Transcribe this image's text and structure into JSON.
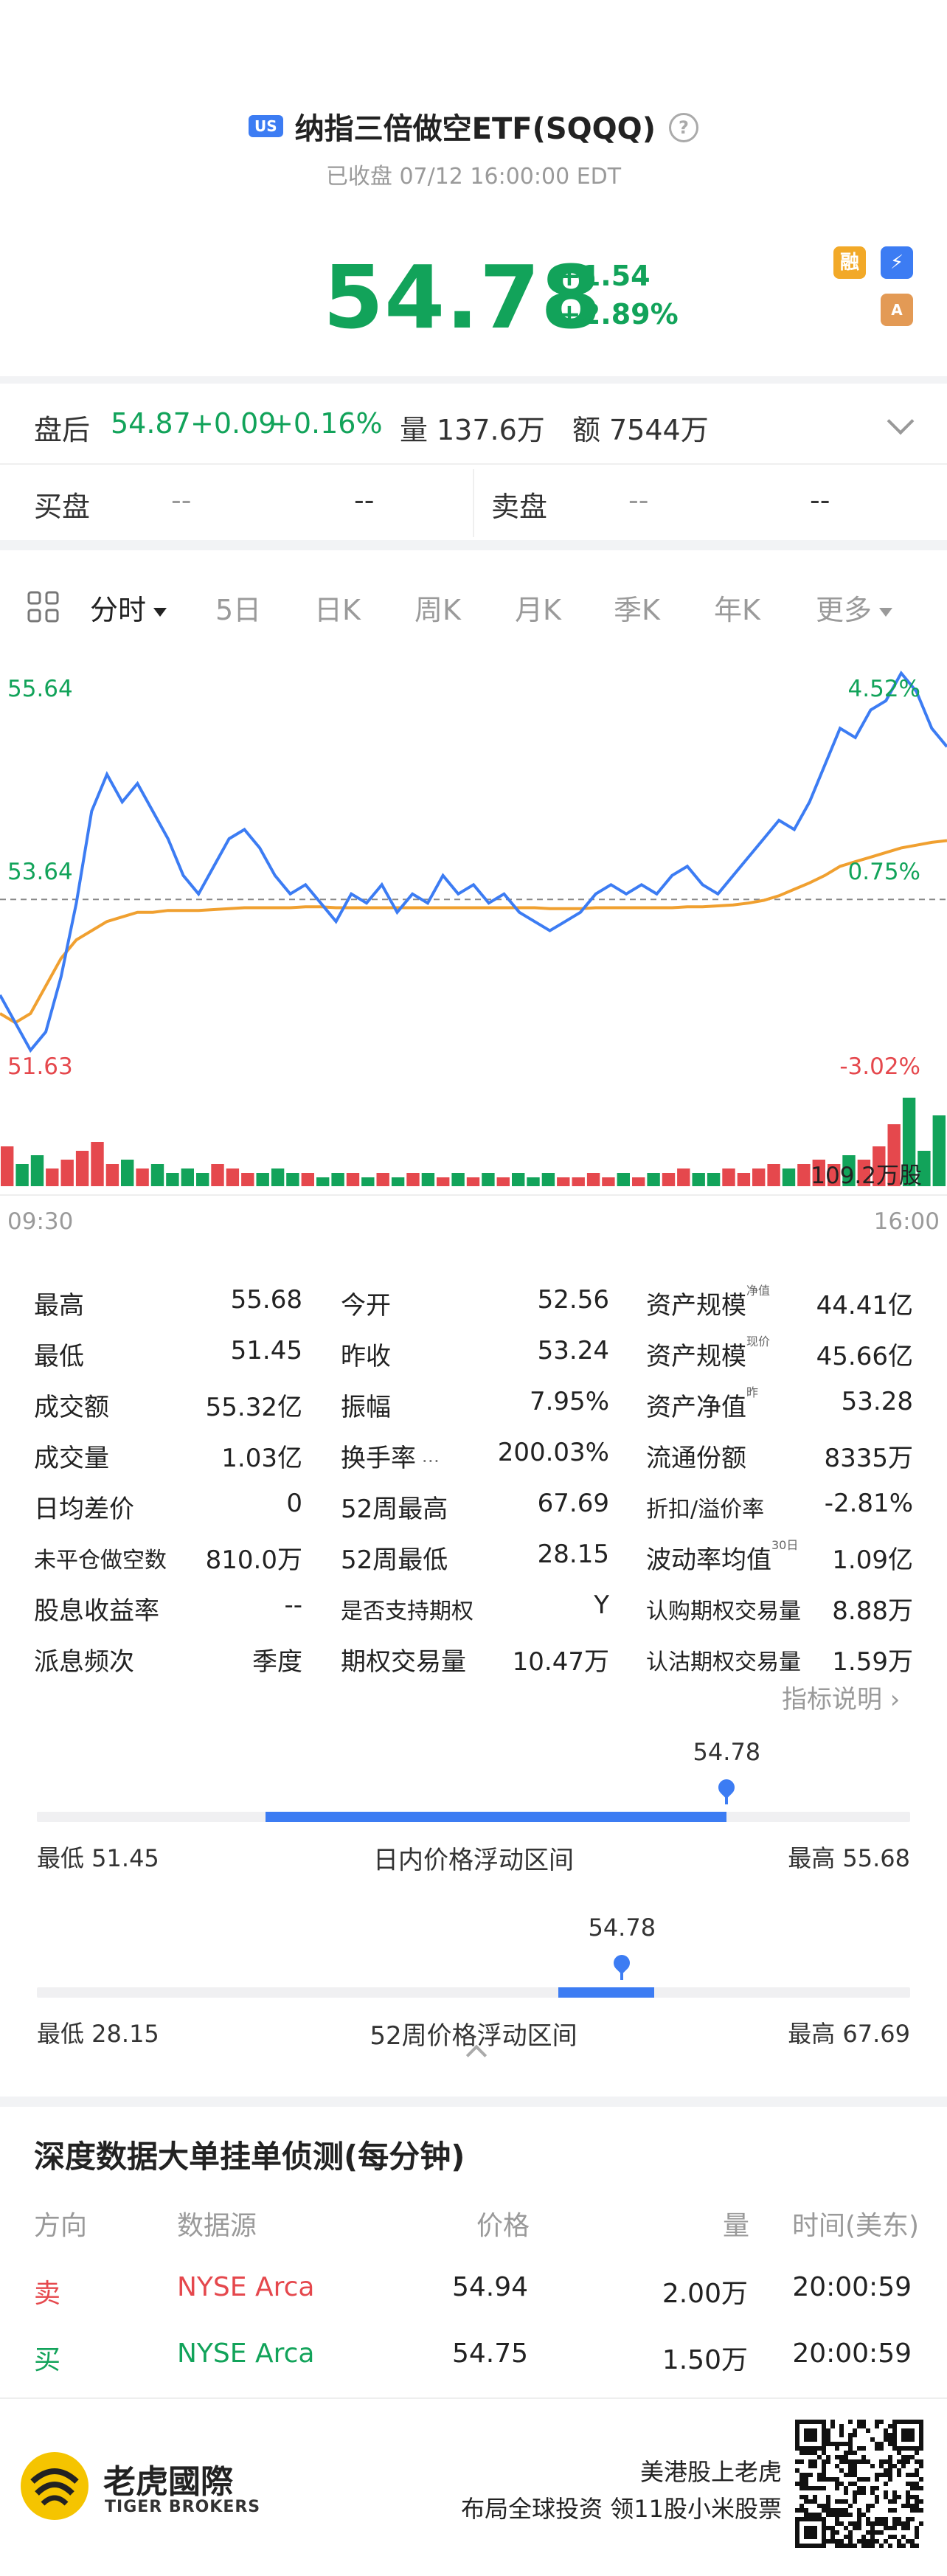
{
  "header": {
    "market_badge": "US",
    "title": "纳指三倍做空ETF(SQQQ)",
    "subtitle": "已收盘 07/12 16:00:00 EDT",
    "price": "54.78",
    "change": "+1.54",
    "change_pct": "+2.89%",
    "badges": {
      "margin": "融",
      "lightning": "⚡",
      "options": "A"
    }
  },
  "after_hours": {
    "label": "盘后",
    "price": "54.87",
    "change": "+0.09",
    "change_pct": "+0.16%",
    "volume_label": "量",
    "volume": "137.6万",
    "amount_label": "额",
    "amount": "7544万"
  },
  "orderbook": {
    "bid_label": "买盘",
    "bid_price": "--",
    "bid_size": "--",
    "ask_label": "卖盘",
    "ask_price": "--",
    "ask_size": "--"
  },
  "tabs": [
    "分时",
    "5日",
    "日K",
    "周K",
    "月K",
    "季K",
    "年K",
    "更多"
  ],
  "chart_data": {
    "type": "line",
    "y_ticks_left": [
      "55.64",
      "53.64",
      "51.63"
    ],
    "y_ticks_right": [
      "4.52%",
      "0.75%",
      "-3.02%"
    ],
    "x_ticks": [
      "09:30",
      "16:00"
    ],
    "volume_label": "109.2万股",
    "prev_close": 53.24,
    "ylim": [
      51.63,
      55.64
    ],
    "series": [
      {
        "values": [
          52.2,
          51.9,
          51.6,
          51.8,
          52.4,
          53.2,
          54.2,
          54.6,
          54.3,
          54.5,
          54.2,
          53.9,
          53.5,
          53.3,
          53.6,
          53.9,
          54.0,
          53.8,
          53.5,
          53.3,
          53.4,
          53.2,
          53.0,
          53.3,
          53.2,
          53.4,
          53.1,
          53.3,
          53.2,
          53.5,
          53.3,
          53.4,
          53.2,
          53.3,
          53.1,
          53.0,
          52.9,
          53.0,
          53.1,
          53.3,
          53.4,
          53.3,
          53.4,
          53.3,
          53.5,
          53.6,
          53.4,
          53.3,
          53.5,
          53.7,
          53.9,
          54.1,
          54.0,
          54.3,
          54.7,
          55.1,
          55.0,
          55.3,
          55.4,
          55.7,
          55.5,
          55.1,
          54.9
        ]
      },
      {
        "values": [
          52.0,
          51.9,
          52.0,
          52.3,
          52.6,
          52.8,
          52.9,
          53.0,
          53.05,
          53.1,
          53.1,
          53.12,
          53.12,
          53.12,
          53.13,
          53.14,
          53.15,
          53.15,
          53.15,
          53.15,
          53.16,
          53.16,
          53.15,
          53.15,
          53.15,
          53.15,
          53.15,
          53.15,
          53.15,
          53.15,
          53.15,
          53.15,
          53.15,
          53.15,
          53.15,
          53.15,
          53.14,
          53.14,
          53.14,
          53.15,
          53.15,
          53.15,
          53.15,
          53.15,
          53.15,
          53.16,
          53.16,
          53.17,
          53.18,
          53.2,
          53.23,
          53.28,
          53.35,
          53.42,
          53.5,
          53.6,
          53.65,
          53.7,
          53.75,
          53.8,
          53.83,
          53.86,
          53.88
        ]
      }
    ],
    "volume": [
      9,
      5,
      7,
      4,
      6,
      8,
      10,
      5,
      6,
      4,
      5,
      3,
      4,
      3,
      5,
      4,
      3,
      3,
      4,
      3,
      3,
      2,
      3,
      3,
      2,
      3,
      2,
      3,
      3,
      2,
      3,
      2,
      3,
      2,
      3,
      2,
      3,
      2,
      2,
      3,
      2,
      3,
      2,
      3,
      3,
      4,
      3,
      3,
      4,
      3,
      4,
      5,
      4,
      5,
      6,
      5,
      7,
      6,
      9,
      14,
      20,
      8,
      16
    ]
  },
  "stats": [
    [
      {
        "k": "最高",
        "v": "55.68"
      },
      {
        "k": "今开",
        "v": "52.56"
      },
      {
        "k": "资产规模",
        "sup": "净值",
        "v": "44.41亿"
      }
    ],
    [
      {
        "k": "最低",
        "v": "51.45"
      },
      {
        "k": "昨收",
        "v": "53.24"
      },
      {
        "k": "资产规模",
        "sup": "现价",
        "v": "45.66亿"
      }
    ],
    [
      {
        "k": "成交额",
        "v": "55.32亿"
      },
      {
        "k": "振幅",
        "v": "7.95%"
      },
      {
        "k": "资产净值",
        "sup": "昨",
        "v": "53.28"
      }
    ],
    [
      {
        "k": "成交量",
        "v": "1.03亿"
      },
      {
        "k": "换手率",
        "v": "200.03%"
      },
      {
        "k": "流通份额",
        "v": "8335万"
      }
    ],
    [
      {
        "k": "日均差价",
        "v": "0"
      },
      {
        "k": "52周最高",
        "v": "67.69"
      },
      {
        "k": "折扣/溢价率",
        "v": "-2.81%"
      }
    ],
    [
      {
        "k": "未平仓做空数",
        "v": "810.0万"
      },
      {
        "k": "52周最低",
        "v": "28.15"
      },
      {
        "k": "波动率均值",
        "sup": "30日",
        "v": "1.09亿"
      }
    ],
    [
      {
        "k": "股息收益率",
        "v": "--"
      },
      {
        "k": "是否支持期权",
        "v": "Y"
      },
      {
        "k": "认购期权交易量",
        "v": "8.88万"
      }
    ],
    [
      {
        "k": "派息频次",
        "v": "季度"
      },
      {
        "k": "期权交易量",
        "v": "10.47万"
      },
      {
        "k": "认沽期权交易量",
        "v": "1.59万"
      }
    ]
  ],
  "indicator_help": "指标说明",
  "day_range": {
    "current": "54.78",
    "low_label": "最低 51.45",
    "title": "日内价格浮动区间",
    "high_label": "最高 55.68",
    "position": 0.79
  },
  "week52_range": {
    "current": "54.78",
    "low_label": "最低 28.15",
    "title": "52周价格浮动区间",
    "high_label": "最高 67.69",
    "position": 0.67
  },
  "depth": {
    "title": "深度数据大单挂单侦测(每分钟)",
    "headers": [
      "方向",
      "数据源",
      "价格",
      "量",
      "时间(美东)"
    ],
    "rows": [
      {
        "dir": "卖",
        "src": "NYSE Arca",
        "price": "54.94",
        "qty": "2.00万",
        "time": "20:00:59"
      },
      {
        "dir": "买",
        "src": "NYSE Arca",
        "price": "54.75",
        "qty": "1.50万",
        "time": "20:00:59"
      }
    ]
  },
  "footer": {
    "brand_cn": "老虎國際",
    "brand_en": "TIGER BROKERS",
    "slogan1": "美港股上老虎",
    "slogan2": "布局全球投资 领11股小米股票"
  }
}
